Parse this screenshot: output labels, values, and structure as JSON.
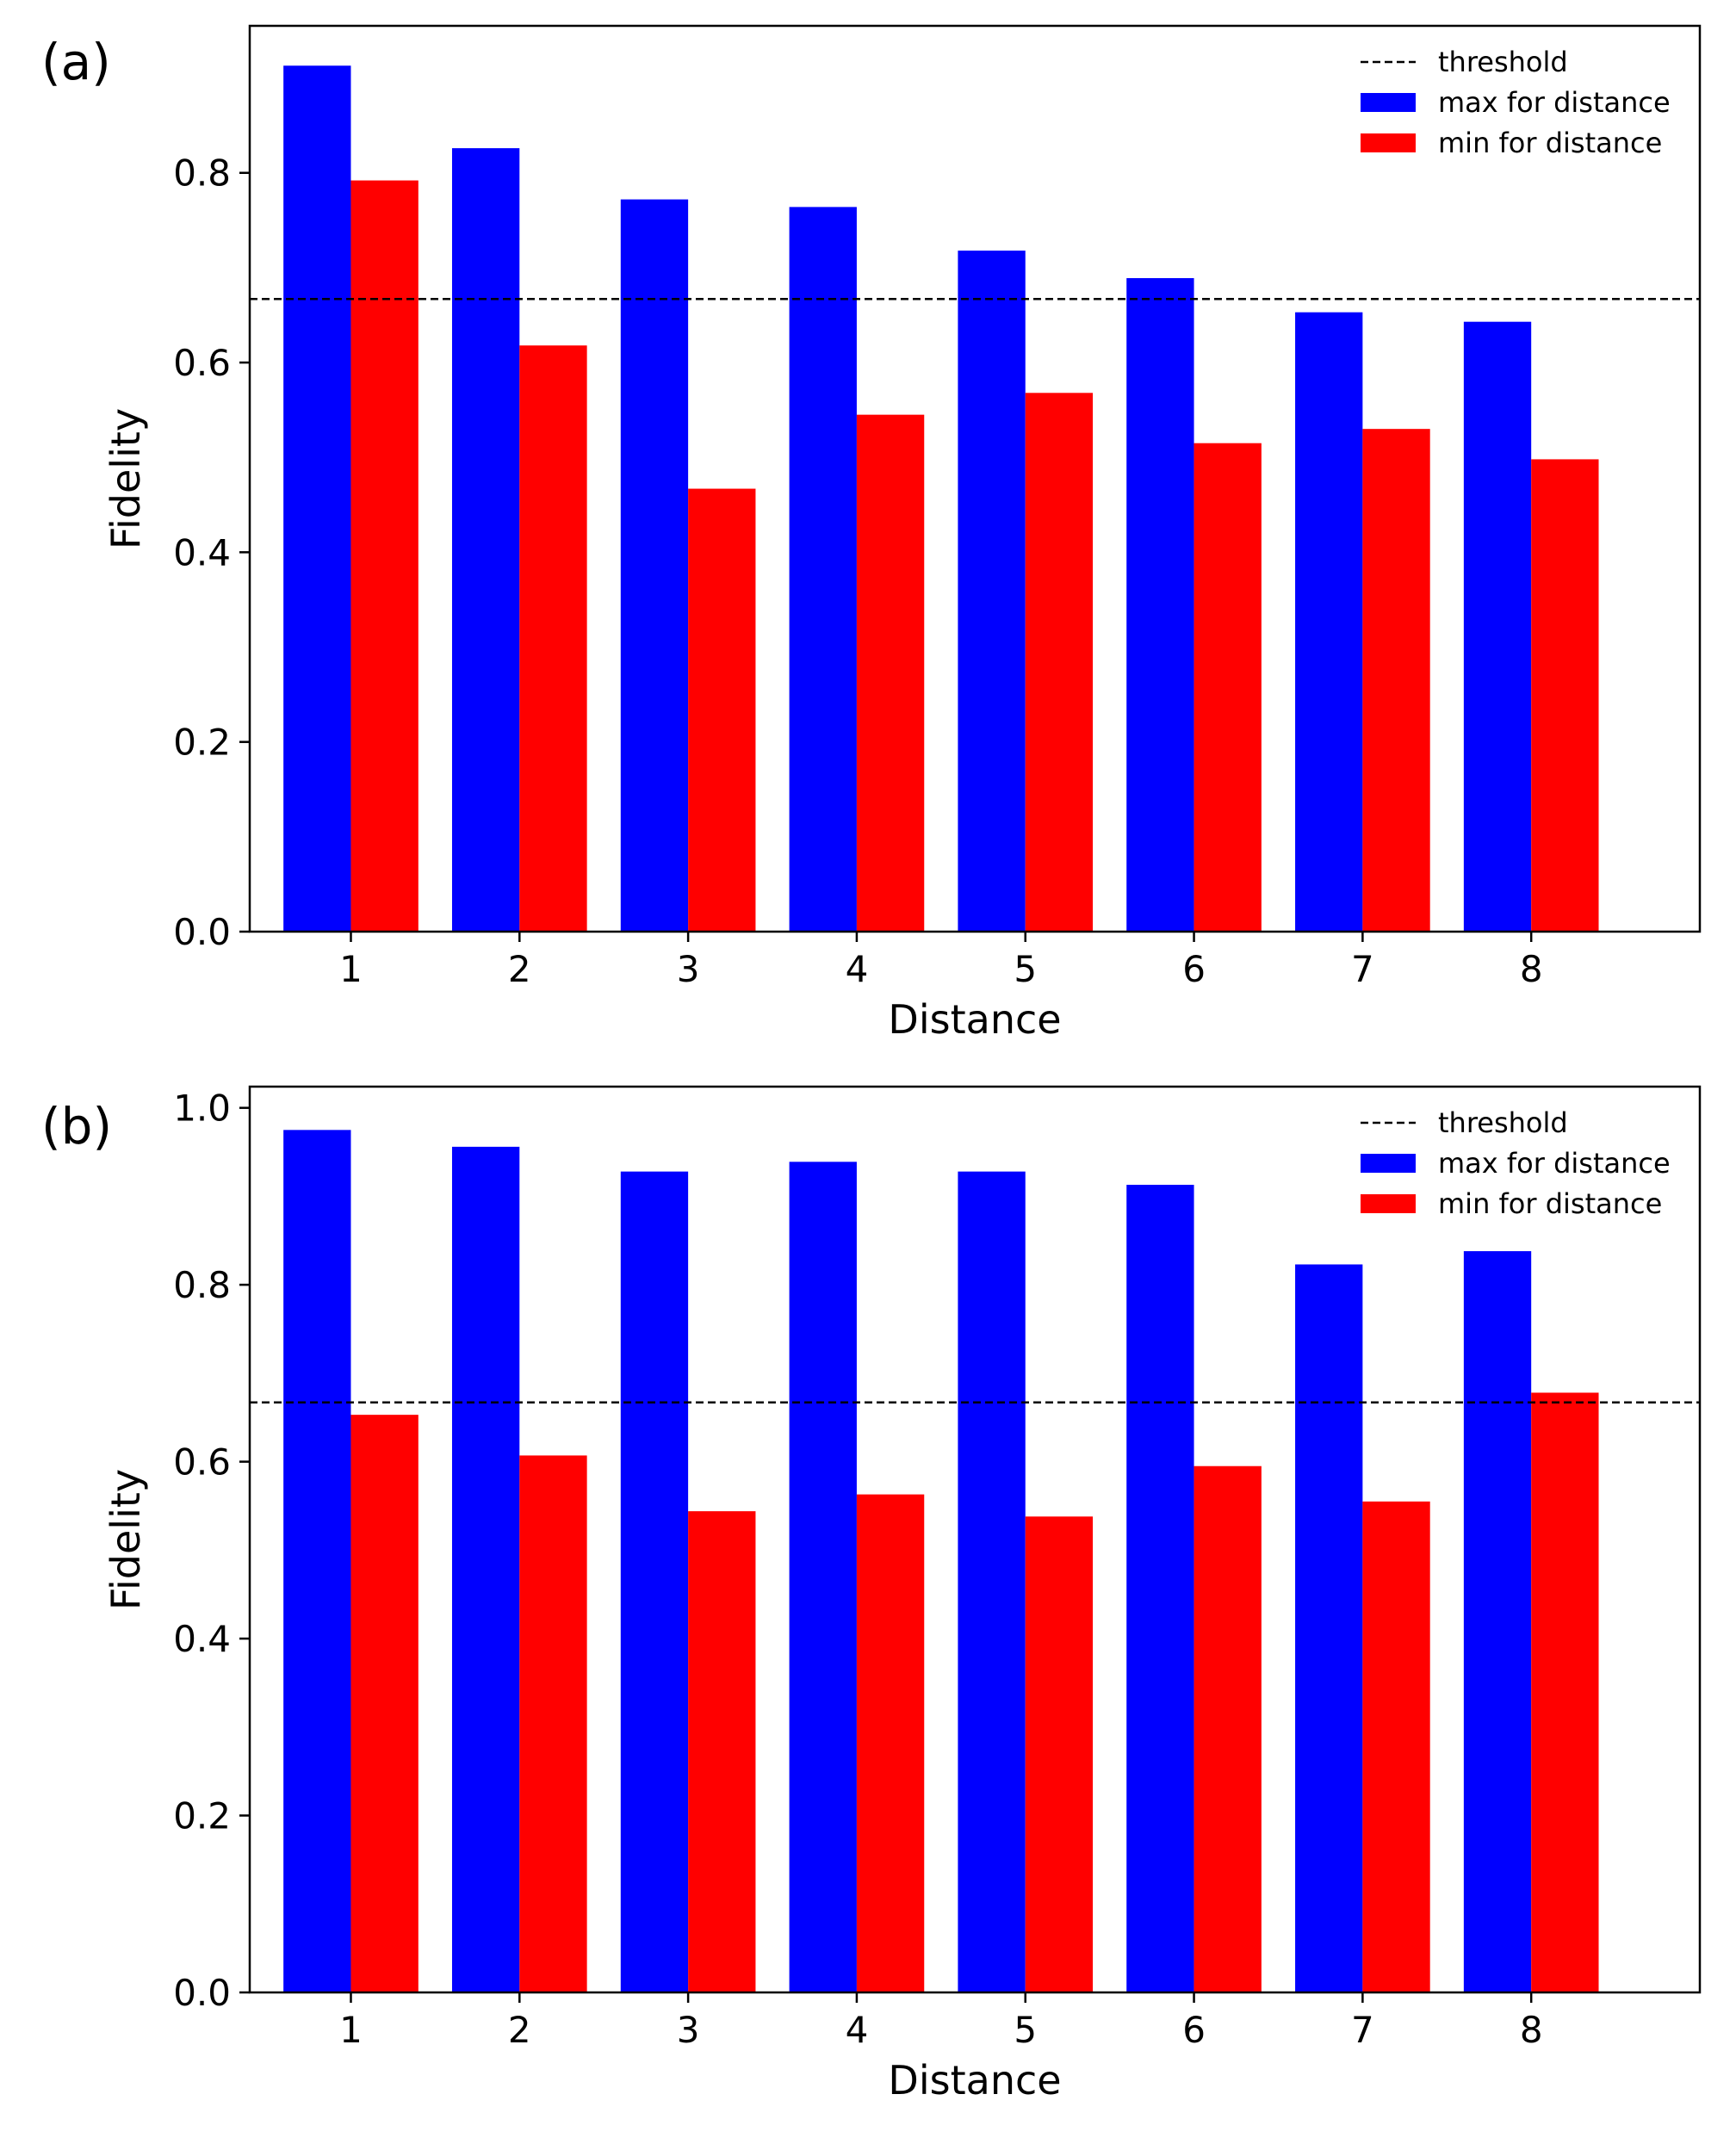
{
  "colors": {
    "max_bar": "#0000ff",
    "min_bar": "#ff0000",
    "threshold_line": "#000000",
    "axes": "#000000",
    "background": "#ffffff"
  },
  "chart_data": [
    {
      "type": "bar",
      "panel_label": "(a)",
      "xlabel": "Distance",
      "ylabel": "Fidelity",
      "categories": [
        "1",
        "2",
        "3",
        "4",
        "5",
        "6",
        "7",
        "8"
      ],
      "series": [
        {
          "name": "max for distance",
          "color": "#0000ff",
          "values": [
            0.913,
            0.826,
            0.772,
            0.764,
            0.718,
            0.689,
            0.653,
            0.643
          ]
        },
        {
          "name": "min for distance",
          "color": "#ff0000",
          "values": [
            0.792,
            0.618,
            0.467,
            0.545,
            0.568,
            0.515,
            0.53,
            0.498
          ]
        }
      ],
      "threshold": {
        "name": "threshold",
        "value": 0.667,
        "style": "dashed"
      },
      "ylim": [
        0,
        0.955
      ],
      "yticks": [
        "0.0",
        "0.2",
        "0.4",
        "0.6",
        "0.8"
      ],
      "ytick_values": [
        0,
        0.2,
        0.4,
        0.6,
        0.8
      ],
      "legend": "top-right",
      "grid": false
    },
    {
      "type": "bar",
      "panel_label": "(b)",
      "xlabel": "Distance",
      "ylabel": "Fidelity",
      "categories": [
        "1",
        "2",
        "3",
        "4",
        "5",
        "6",
        "7",
        "8"
      ],
      "series": [
        {
          "name": "max for distance",
          "color": "#0000ff",
          "values": [
            0.975,
            0.956,
            0.928,
            0.939,
            0.928,
            0.913,
            0.823,
            0.838
          ]
        },
        {
          "name": "min for distance",
          "color": "#ff0000",
          "values": [
            0.653,
            0.607,
            0.544,
            0.563,
            0.538,
            0.595,
            0.555,
            0.678
          ]
        }
      ],
      "threshold": {
        "name": "threshold",
        "value": 0.667,
        "style": "dashed"
      },
      "ylim": [
        0,
        1.024
      ],
      "yticks": [
        "0.0",
        "0.2",
        "0.4",
        "0.6",
        "0.8",
        "1.0"
      ],
      "ytick_values": [
        0,
        0.2,
        0.4,
        0.6,
        0.8,
        1.0
      ],
      "legend": "top-right",
      "grid": false
    }
  ]
}
